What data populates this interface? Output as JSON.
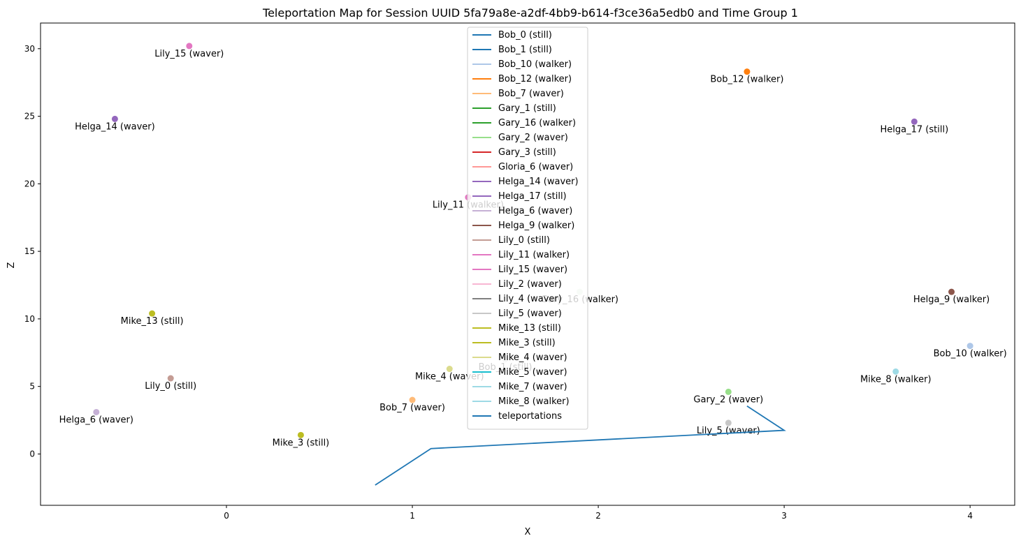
{
  "chart_data": {
    "type": "scatter",
    "title": "Teleportation Map for Session UUID 5fa79a8e-a2df-4bb9-b614-f3ce36a5edb0 and Time Group 1",
    "xlabel": "X",
    "ylabel": "Z",
    "xlim": [
      -1.0,
      4.24
    ],
    "ylim": [
      -3.8,
      31.9
    ],
    "xticks": [
      0,
      1,
      2,
      3,
      4
    ],
    "yticks": [
      0,
      5,
      10,
      15,
      20,
      25,
      30
    ],
    "legend_position": "top-center",
    "series": [
      {
        "name": "Bob_0 (still)",
        "color": "#1f77b4",
        "points": [],
        "label": ""
      },
      {
        "name": "Bob_1 (still)",
        "color": "#1f77b4",
        "points": [],
        "label": ""
      },
      {
        "name": "Bob_10 (walker)",
        "color": "#aec7e8",
        "points": [
          [
            4.0,
            8.0
          ]
        ],
        "label": "Bob_10 (walker)"
      },
      {
        "name": "Bob_12 (walker)",
        "color": "#ff7f0e",
        "points": [
          [
            2.8,
            28.3
          ]
        ],
        "label": "Bob_12 (walker)"
      },
      {
        "name": "Bob_7 (waver)",
        "color": "#ffbb78",
        "points": [
          [
            1.0,
            4.0
          ]
        ],
        "label": "Bob_7 (waver)"
      },
      {
        "name": "Gary_1 (still)",
        "color": "#2ca02c",
        "points": [],
        "label": ""
      },
      {
        "name": "Gary_16 (walker)",
        "color": "#2ca02c",
        "points": [],
        "label": ""
      },
      {
        "name": "Gary_2 (waver)",
        "color": "#98df8a",
        "points": [
          [
            2.7,
            4.6
          ]
        ],
        "label": "Gary_2 (waver)"
      },
      {
        "name": "Gary_3 (still)",
        "color": "#d62728",
        "points": [],
        "label": ""
      },
      {
        "name": "Gloria_6 (waver)",
        "color": "#ff9896",
        "points": [],
        "label": ""
      },
      {
        "name": "Helga_14 (waver)",
        "color": "#9467bd",
        "points": [
          [
            -0.6,
            24.8
          ]
        ],
        "label": "Helga_14 (waver)"
      },
      {
        "name": "Helga_17 (still)",
        "color": "#9467bd",
        "points": [
          [
            3.7,
            24.6
          ]
        ],
        "label": "Helga_17 (still)"
      },
      {
        "name": "Helga_6 (waver)",
        "color": "#c5b0d5",
        "points": [
          [
            -0.7,
            3.1
          ]
        ],
        "label": "Helga_6 (waver)"
      },
      {
        "name": "Helga_9 (walker)",
        "color": "#8c564b",
        "points": [
          [
            3.9,
            12.0
          ]
        ],
        "label": "Helga_9 (walker)"
      },
      {
        "name": "Lily_0 (still)",
        "color": "#c49c94",
        "points": [
          [
            -0.3,
            5.6
          ]
        ],
        "label": "Lily_0 (still)"
      },
      {
        "name": "Lily_11 (walker)",
        "color": "#e377c2",
        "points": [
          [
            1.3,
            19.0
          ]
        ],
        "label": "Lily_11 (walker)"
      },
      {
        "name": "Lily_15 (waver)",
        "color": "#e377c2",
        "points": [
          [
            -0.2,
            30.2
          ]
        ],
        "label": "Lily_15 (waver)"
      },
      {
        "name": "Lily_2 (waver)",
        "color": "#f7b6d2",
        "points": [],
        "label": ""
      },
      {
        "name": "Lily_4 (waver)",
        "color": "#7f7f7f",
        "points": [],
        "label": ""
      },
      {
        "name": "Lily_5 (waver)",
        "color": "#c7c7c7",
        "points": [
          [
            2.7,
            2.3
          ]
        ],
        "label": "Lily_5 (waver)"
      },
      {
        "name": "Mike_13 (still)",
        "color": "#bcbd22",
        "points": [
          [
            -0.4,
            10.4
          ]
        ],
        "label": "Mike_13 (still)"
      },
      {
        "name": "Mike_3 (still)",
        "color": "#bcbd22",
        "points": [
          [
            0.4,
            1.4
          ]
        ],
        "label": "Mike_3 (still)"
      },
      {
        "name": "Mike_4 (waver)",
        "color": "#dbdb8d",
        "points": [
          [
            1.2,
            6.3
          ]
        ],
        "label": "Mike_4 (waver)"
      },
      {
        "name": "Mike_5 (waver)",
        "color": "#17becf",
        "points": [],
        "label": ""
      },
      {
        "name": "Mike_7 (waver)",
        "color": "#9edae5",
        "points": [],
        "label": ""
      },
      {
        "name": "Mike_8 (walker)",
        "color": "#9edae5",
        "points": [
          [
            3.6,
            6.1
          ]
        ],
        "label": "Mike_8 (walker)"
      }
    ],
    "hidden_labels": [
      {
        "text": "Gary_16 (walker)",
        "x": 1.9,
        "y": 12.0,
        "color": "#d8ecd5"
      },
      {
        "text": "Bob_1 (still)",
        "x": 1.5,
        "y": 7.0,
        "color": "#d4d4d4"
      }
    ],
    "teleportations": {
      "name": "teleportations",
      "color": "#1f77b4",
      "points": [
        [
          0.8,
          -2.3
        ],
        [
          1.1,
          0.4
        ],
        [
          3.0,
          1.75
        ],
        [
          2.8,
          3.55
        ]
      ]
    }
  }
}
